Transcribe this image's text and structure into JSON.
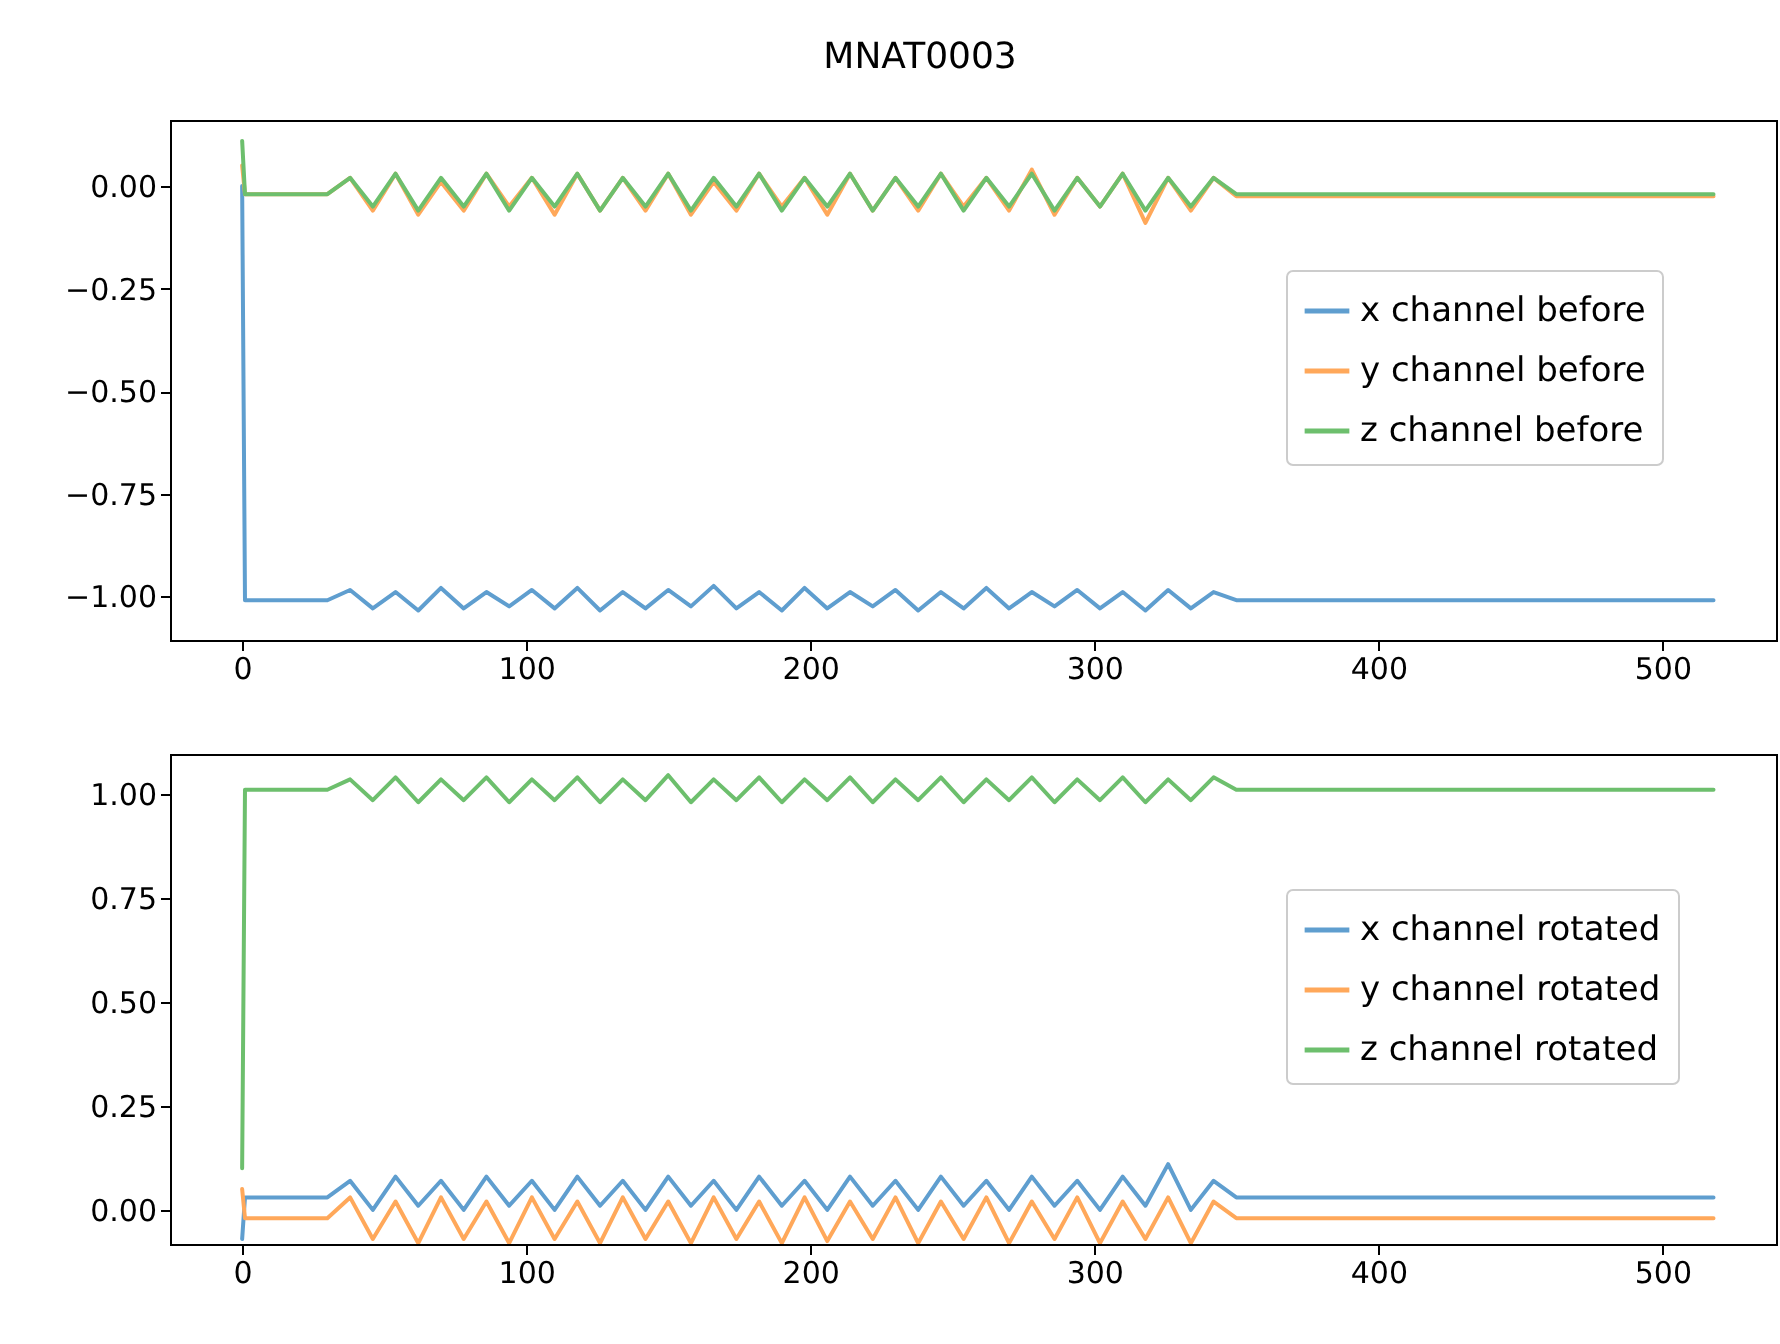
{
  "chart_data": [
    {
      "type": "line",
      "title": "MNAT0003",
      "legend": "right",
      "xlim": [
        -25.4,
        540
      ],
      "ylim": [
        -1.107,
        0.161
      ],
      "xticks": [
        0,
        100,
        200,
        300,
        400,
        500
      ],
      "yticks": [
        {
          "value": -1,
          "label": "−1.00"
        },
        {
          "value": -0.75,
          "label": "−0.75"
        },
        {
          "value": -0.5,
          "label": "−0.50"
        },
        {
          "value": -0.25,
          "label": "−0.25"
        },
        {
          "value": 0,
          "label": "0.00"
        }
      ],
      "x": [
        0,
        1,
        30,
        38,
        46,
        54,
        62,
        70,
        78,
        86,
        94,
        102,
        110,
        118,
        126,
        134,
        142,
        150,
        158,
        166,
        174,
        182,
        190,
        198,
        206,
        214,
        222,
        230,
        238,
        246,
        254,
        262,
        270,
        278,
        286,
        294,
        302,
        310,
        318,
        326,
        334,
        342,
        350,
        518
      ],
      "series": [
        {
          "name": "x channel before",
          "color": "#5f9ecf",
          "values": [
            0.0,
            -1.01,
            -1.01,
            -0.985,
            -1.03,
            -0.99,
            -1.035,
            -0.98,
            -1.03,
            -0.99,
            -1.025,
            -0.985,
            -1.03,
            -0.98,
            -1.035,
            -0.99,
            -1.03,
            -0.985,
            -1.025,
            -0.975,
            -1.03,
            -0.99,
            -1.035,
            -0.98,
            -1.03,
            -0.99,
            -1.025,
            -0.985,
            -1.035,
            -0.99,
            -1.03,
            -0.98,
            -1.03,
            -0.99,
            -1.025,
            -0.985,
            -1.03,
            -0.99,
            -1.035,
            -0.985,
            -1.03,
            -0.99,
            -1.01,
            -1.01
          ]
        },
        {
          "name": "y channel before",
          "color": "#ffa85a",
          "values": [
            0.05,
            -0.02,
            -0.02,
            0.02,
            -0.06,
            0.03,
            -0.07,
            0.01,
            -0.06,
            0.03,
            -0.05,
            0.02,
            -0.07,
            0.03,
            -0.06,
            0.02,
            -0.06,
            0.03,
            -0.07,
            0.01,
            -0.06,
            0.03,
            -0.05,
            0.02,
            -0.07,
            0.03,
            -0.06,
            0.02,
            -0.06,
            0.03,
            -0.05,
            0.02,
            -0.06,
            0.04,
            -0.07,
            0.02,
            -0.05,
            0.03,
            -0.09,
            0.02,
            -0.06,
            0.02,
            -0.025,
            -0.025
          ]
        },
        {
          "name": "z channel before",
          "color": "#6dbf6d",
          "values": [
            0.11,
            -0.02,
            -0.02,
            0.02,
            -0.05,
            0.03,
            -0.06,
            0.02,
            -0.05,
            0.03,
            -0.06,
            0.02,
            -0.05,
            0.03,
            -0.06,
            0.02,
            -0.05,
            0.03,
            -0.06,
            0.02,
            -0.05,
            0.03,
            -0.06,
            0.02,
            -0.05,
            0.03,
            -0.06,
            0.02,
            -0.05,
            0.03,
            -0.06,
            0.02,
            -0.05,
            0.03,
            -0.06,
            0.02,
            -0.05,
            0.03,
            -0.06,
            0.02,
            -0.05,
            0.02,
            -0.02,
            -0.02
          ]
        }
      ]
    },
    {
      "type": "line",
      "legend": "right",
      "xlim": [
        -25.4,
        540
      ],
      "ylim": [
        -0.082,
        1.096
      ],
      "xticks": [
        0,
        100,
        200,
        300,
        400,
        500
      ],
      "yticks": [
        {
          "value": 0,
          "label": "0.00"
        },
        {
          "value": 0.25,
          "label": "0.25"
        },
        {
          "value": 0.5,
          "label": "0.50"
        },
        {
          "value": 0.75,
          "label": "0.75"
        },
        {
          "value": 1,
          "label": "1.00"
        }
      ],
      "x": [
        0,
        1,
        30,
        38,
        46,
        54,
        62,
        70,
        78,
        86,
        94,
        102,
        110,
        118,
        126,
        134,
        142,
        150,
        158,
        166,
        174,
        182,
        190,
        198,
        206,
        214,
        222,
        230,
        238,
        246,
        254,
        262,
        270,
        278,
        286,
        294,
        302,
        310,
        318,
        326,
        334,
        342,
        350,
        518
      ],
      "series": [
        {
          "name": "x channel rotated",
          "color": "#5f9ecf",
          "values": [
            -0.07,
            0.03,
            0.03,
            0.07,
            0.0,
            0.08,
            0.01,
            0.07,
            0.0,
            0.08,
            0.01,
            0.07,
            0.0,
            0.08,
            0.01,
            0.07,
            0.0,
            0.08,
            0.01,
            0.07,
            0.0,
            0.08,
            0.01,
            0.07,
            0.0,
            0.08,
            0.01,
            0.07,
            0.0,
            0.08,
            0.01,
            0.07,
            0.0,
            0.08,
            0.01,
            0.07,
            0.0,
            0.08,
            0.01,
            0.11,
            0.0,
            0.07,
            0.03,
            0.03
          ]
        },
        {
          "name": "y channel rotated",
          "color": "#ffa85a",
          "values": [
            0.05,
            -0.02,
            -0.02,
            0.03,
            -0.07,
            0.02,
            -0.08,
            0.03,
            -0.07,
            0.02,
            -0.08,
            0.03,
            -0.07,
            0.02,
            -0.08,
            0.03,
            -0.07,
            0.02,
            -0.08,
            0.03,
            -0.07,
            0.02,
            -0.08,
            0.03,
            -0.075,
            0.02,
            -0.07,
            0.03,
            -0.08,
            0.02,
            -0.07,
            0.03,
            -0.08,
            0.02,
            -0.07,
            0.03,
            -0.08,
            0.02,
            -0.07,
            0.03,
            -0.08,
            0.02,
            -0.02,
            -0.02
          ]
        },
        {
          "name": "z channel rotated",
          "color": "#6dbf6d",
          "values": [
            0.1,
            1.01,
            1.01,
            1.035,
            0.985,
            1.04,
            0.98,
            1.035,
            0.985,
            1.04,
            0.98,
            1.035,
            0.985,
            1.04,
            0.98,
            1.035,
            0.985,
            1.045,
            0.98,
            1.035,
            0.985,
            1.04,
            0.98,
            1.035,
            0.985,
            1.04,
            0.98,
            1.035,
            0.985,
            1.04,
            0.98,
            1.035,
            0.985,
            1.04,
            0.98,
            1.035,
            0.985,
            1.04,
            0.98,
            1.035,
            0.985,
            1.04,
            1.01,
            1.01
          ]
        }
      ]
    }
  ]
}
